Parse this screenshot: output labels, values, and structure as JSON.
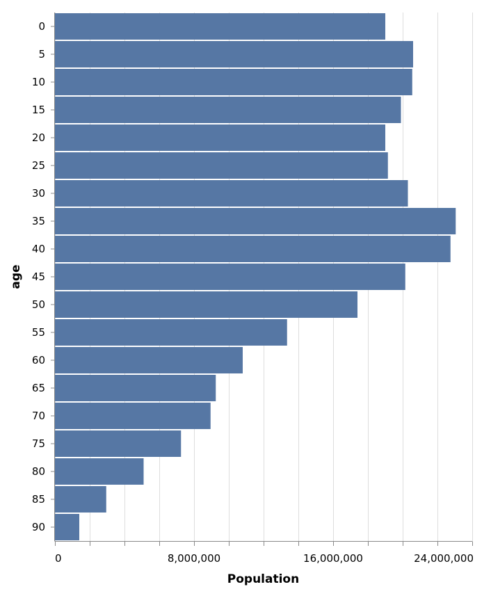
{
  "chart_data": {
    "type": "bar",
    "orientation": "horizontal",
    "xlabel": "Population",
    "ylabel": "age",
    "xlim": [
      0,
      24000000
    ],
    "x_ticks": [
      0,
      8000000,
      16000000,
      24000000
    ],
    "x_tick_labels": [
      "0",
      "8,000,000",
      "16,000,000",
      "24,000,000"
    ],
    "grid": true,
    "bar_color": "#5677a4",
    "categories": [
      "0",
      "5",
      "10",
      "15",
      "20",
      "25",
      "30",
      "35",
      "40",
      "45",
      "50",
      "55",
      "60",
      "65",
      "70",
      "75",
      "80",
      "85",
      "90"
    ],
    "values": [
      19000000,
      20600000,
      20550000,
      19900000,
      19000000,
      19150000,
      20300000,
      23050000,
      22750000,
      20150000,
      17400000,
      13350000,
      10800000,
      9250000,
      8950000,
      7250000,
      5100000,
      2950000,
      1400000
    ]
  }
}
